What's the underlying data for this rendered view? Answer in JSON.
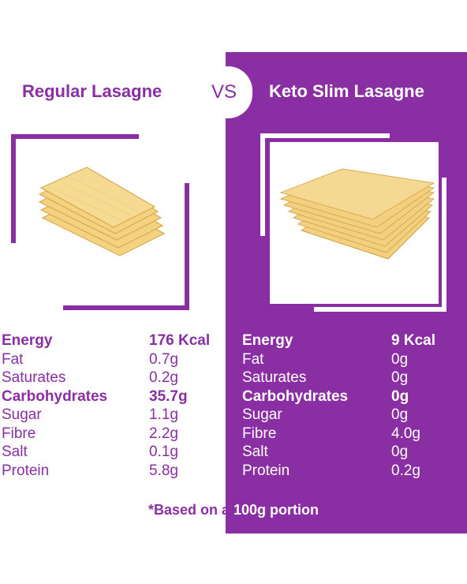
{
  "header": {
    "left_title": "Regular Lasagne",
    "vs": "VS",
    "right_title": "Keto Slim Lasagne"
  },
  "images": {
    "left_icon": "lasagne-sheets-fanned-image",
    "right_icon": "lasagne-sheets-stacked-image"
  },
  "regular": {
    "rows": [
      {
        "label": "Energy",
        "value": "176 Kcal"
      },
      {
        "label": "Fat",
        "value": "0.7g"
      },
      {
        "label": "Saturates",
        "value": "0.2g"
      },
      {
        "label": "Carbohydrates",
        "value": "35.7g"
      },
      {
        "label": "Sugar",
        "value": "1.1g"
      },
      {
        "label": "Fibre",
        "value": "2.2g"
      },
      {
        "label": "Salt",
        "value": "0.1g"
      },
      {
        "label": "Protein",
        "value": "5.8g"
      }
    ]
  },
  "keto": {
    "rows": [
      {
        "label": "Energy",
        "value": "9 Kcal"
      },
      {
        "label": "Fat",
        "value": "0g"
      },
      {
        "label": "Saturates",
        "value": "0g"
      },
      {
        "label": "Carbohydrates",
        "value": "0g"
      },
      {
        "label": "Sugar",
        "value": "0g"
      },
      {
        "label": "Fibre",
        "value": "4.0g"
      },
      {
        "label": "Salt",
        "value": "0g"
      },
      {
        "label": "Protein",
        "value": "0.2g"
      }
    ]
  },
  "footnote": {
    "part1": "*Based on a ",
    "part2": "100g portion"
  },
  "colors": {
    "brand_purple": "#8a2fa3",
    "white": "#ffffff",
    "pasta": "#f2d07f"
  }
}
